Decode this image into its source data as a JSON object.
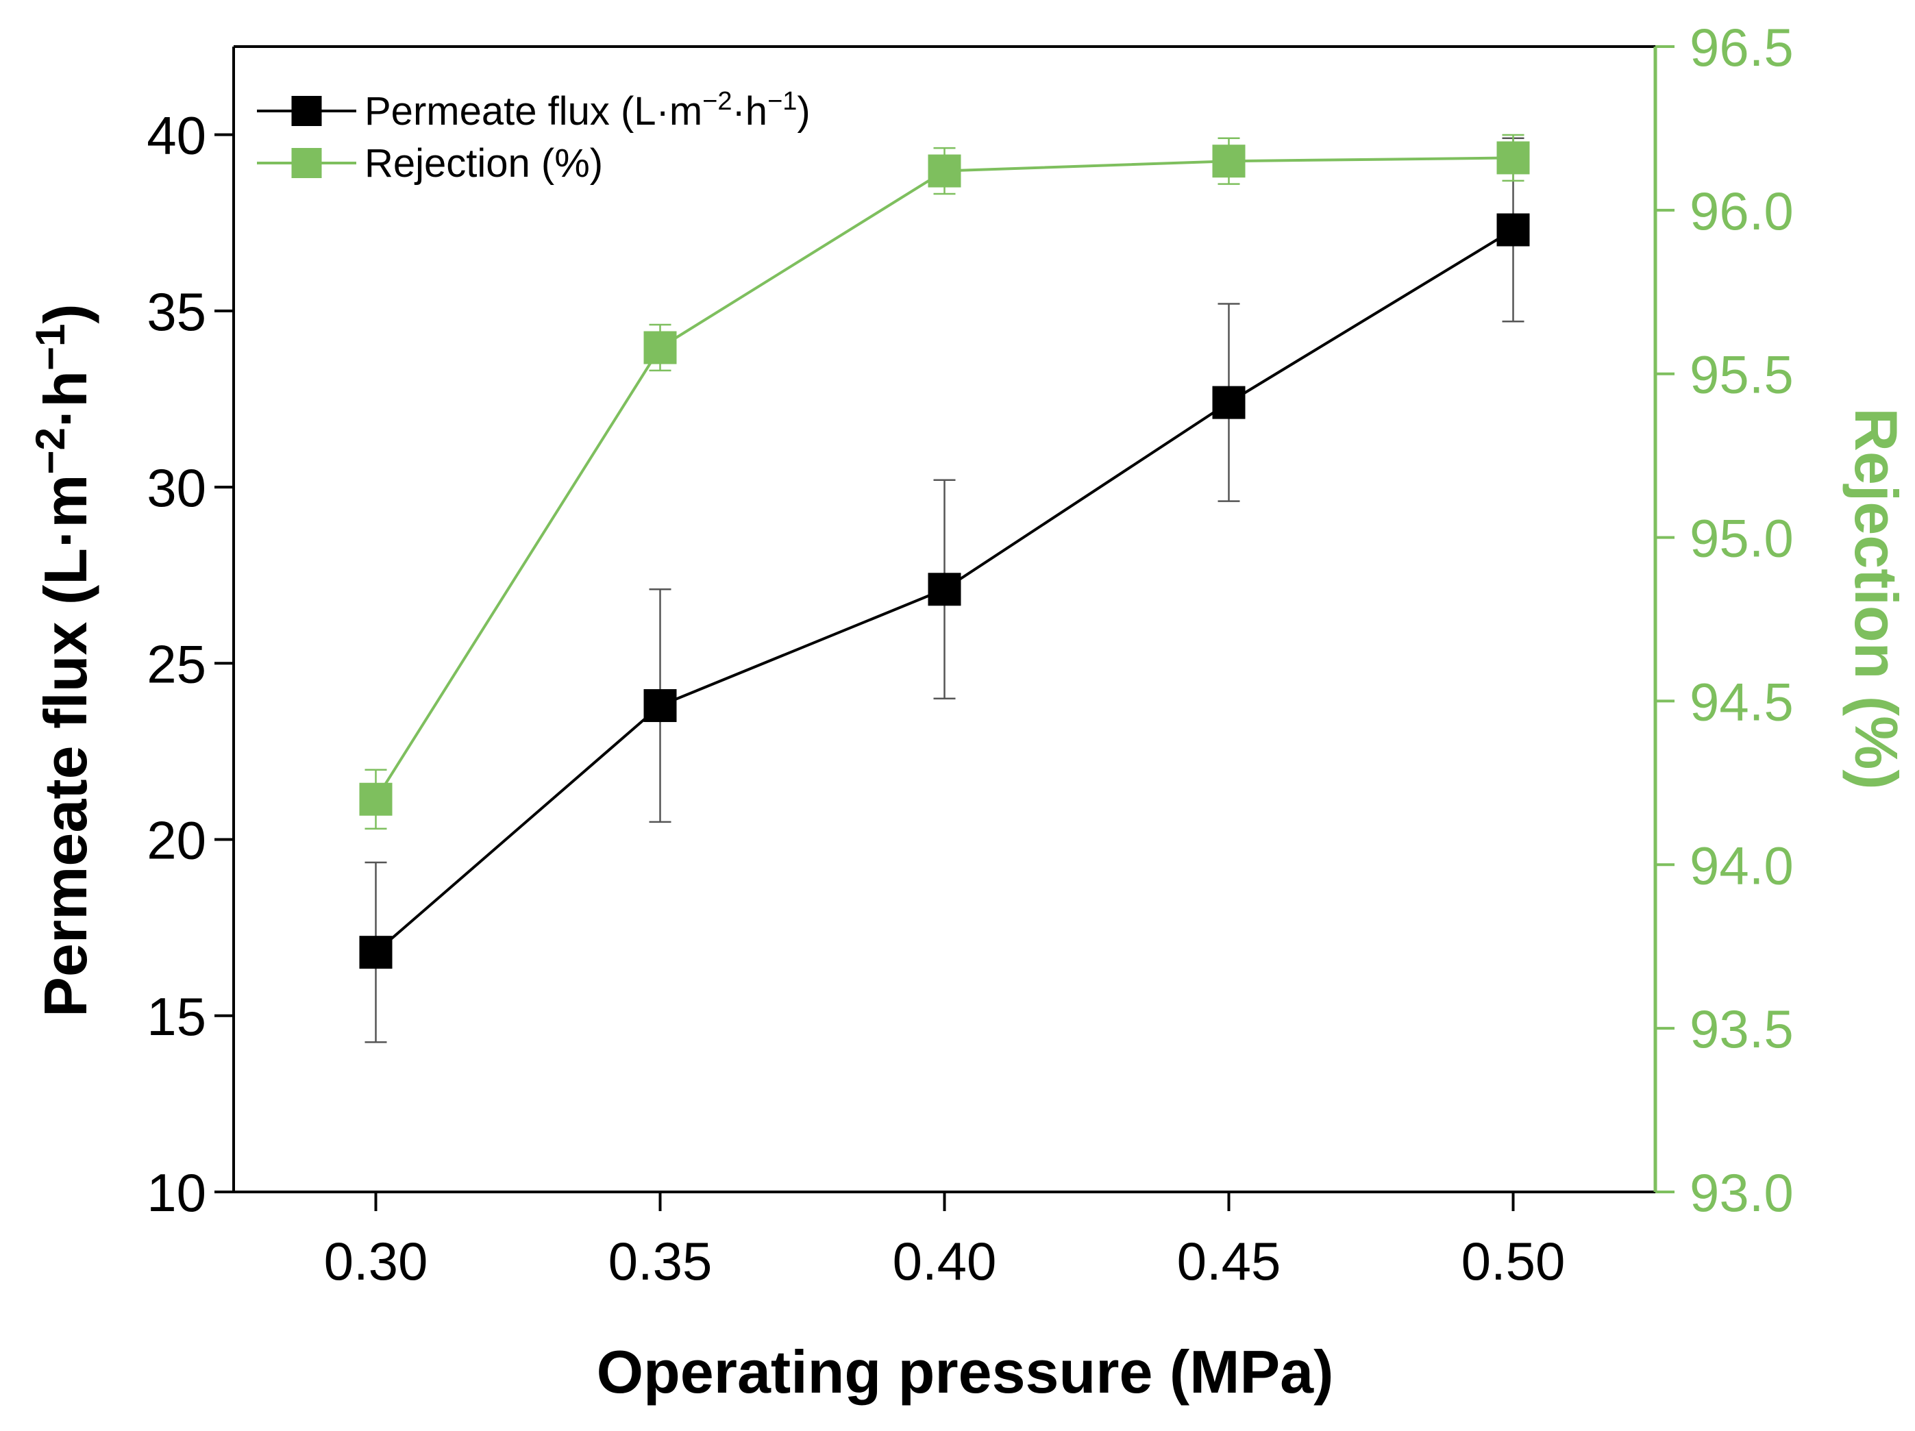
{
  "chart_data": {
    "type": "line",
    "title": "",
    "xlabel": "Operating pressure (MPa)",
    "ylabel": "Permeate flux (L·m−2·h−1)",
    "ylabel_parts": {
      "main": "Permeate flux (L·m",
      "exp1": "−2",
      "mid": "·h",
      "exp2": "−1",
      "close": ")"
    },
    "y2label": "Rejection (%)",
    "x": [
      0.3,
      0.35,
      0.4,
      0.45,
      0.5
    ],
    "x_tick_labels": [
      "0.30",
      "0.35",
      "0.40",
      "0.45",
      "0.50"
    ],
    "xlim": [
      0.275,
      0.525
    ],
    "ylim": [
      10,
      42.5
    ],
    "y_ticks": [
      10,
      15,
      20,
      25,
      30,
      35,
      40
    ],
    "y_tick_labels": [
      "10",
      "15",
      "20",
      "25",
      "30",
      "35",
      "40"
    ],
    "y2lim": [
      93.0,
      96.5
    ],
    "y2_ticks": [
      93.0,
      93.5,
      94.0,
      94.5,
      95.0,
      95.5,
      96.0,
      96.5
    ],
    "y2_tick_labels": [
      "93.0",
      "93.5",
      "94.0",
      "94.5",
      "95.0",
      "95.5",
      "96.0",
      "96.5"
    ],
    "series": [
      {
        "name": "Permeate flux (L·m−2·h−1)",
        "legend_parts": {
          "main": "Permeate flux (L·m",
          "exp1": "−2",
          "mid": "·h",
          "exp2": "−1",
          "close": ")"
        },
        "axis": "left",
        "color": "#000000",
        "values": [
          16.8,
          23.8,
          27.1,
          32.4,
          37.3
        ],
        "errors": [
          2.55,
          3.3,
          3.1,
          2.8,
          2.6
        ]
      },
      {
        "name": "Rejection (%)",
        "axis": "right",
        "color": "#7ebf5e",
        "values": [
          94.2,
          95.58,
          96.12,
          96.15,
          96.16
        ],
        "errors": [
          0.09,
          0.07,
          0.07,
          0.07,
          0.07
        ]
      }
    ],
    "legend_position": "top-left"
  },
  "colors": {
    "axis": "#000000",
    "accent": "#7ebf5e"
  }
}
